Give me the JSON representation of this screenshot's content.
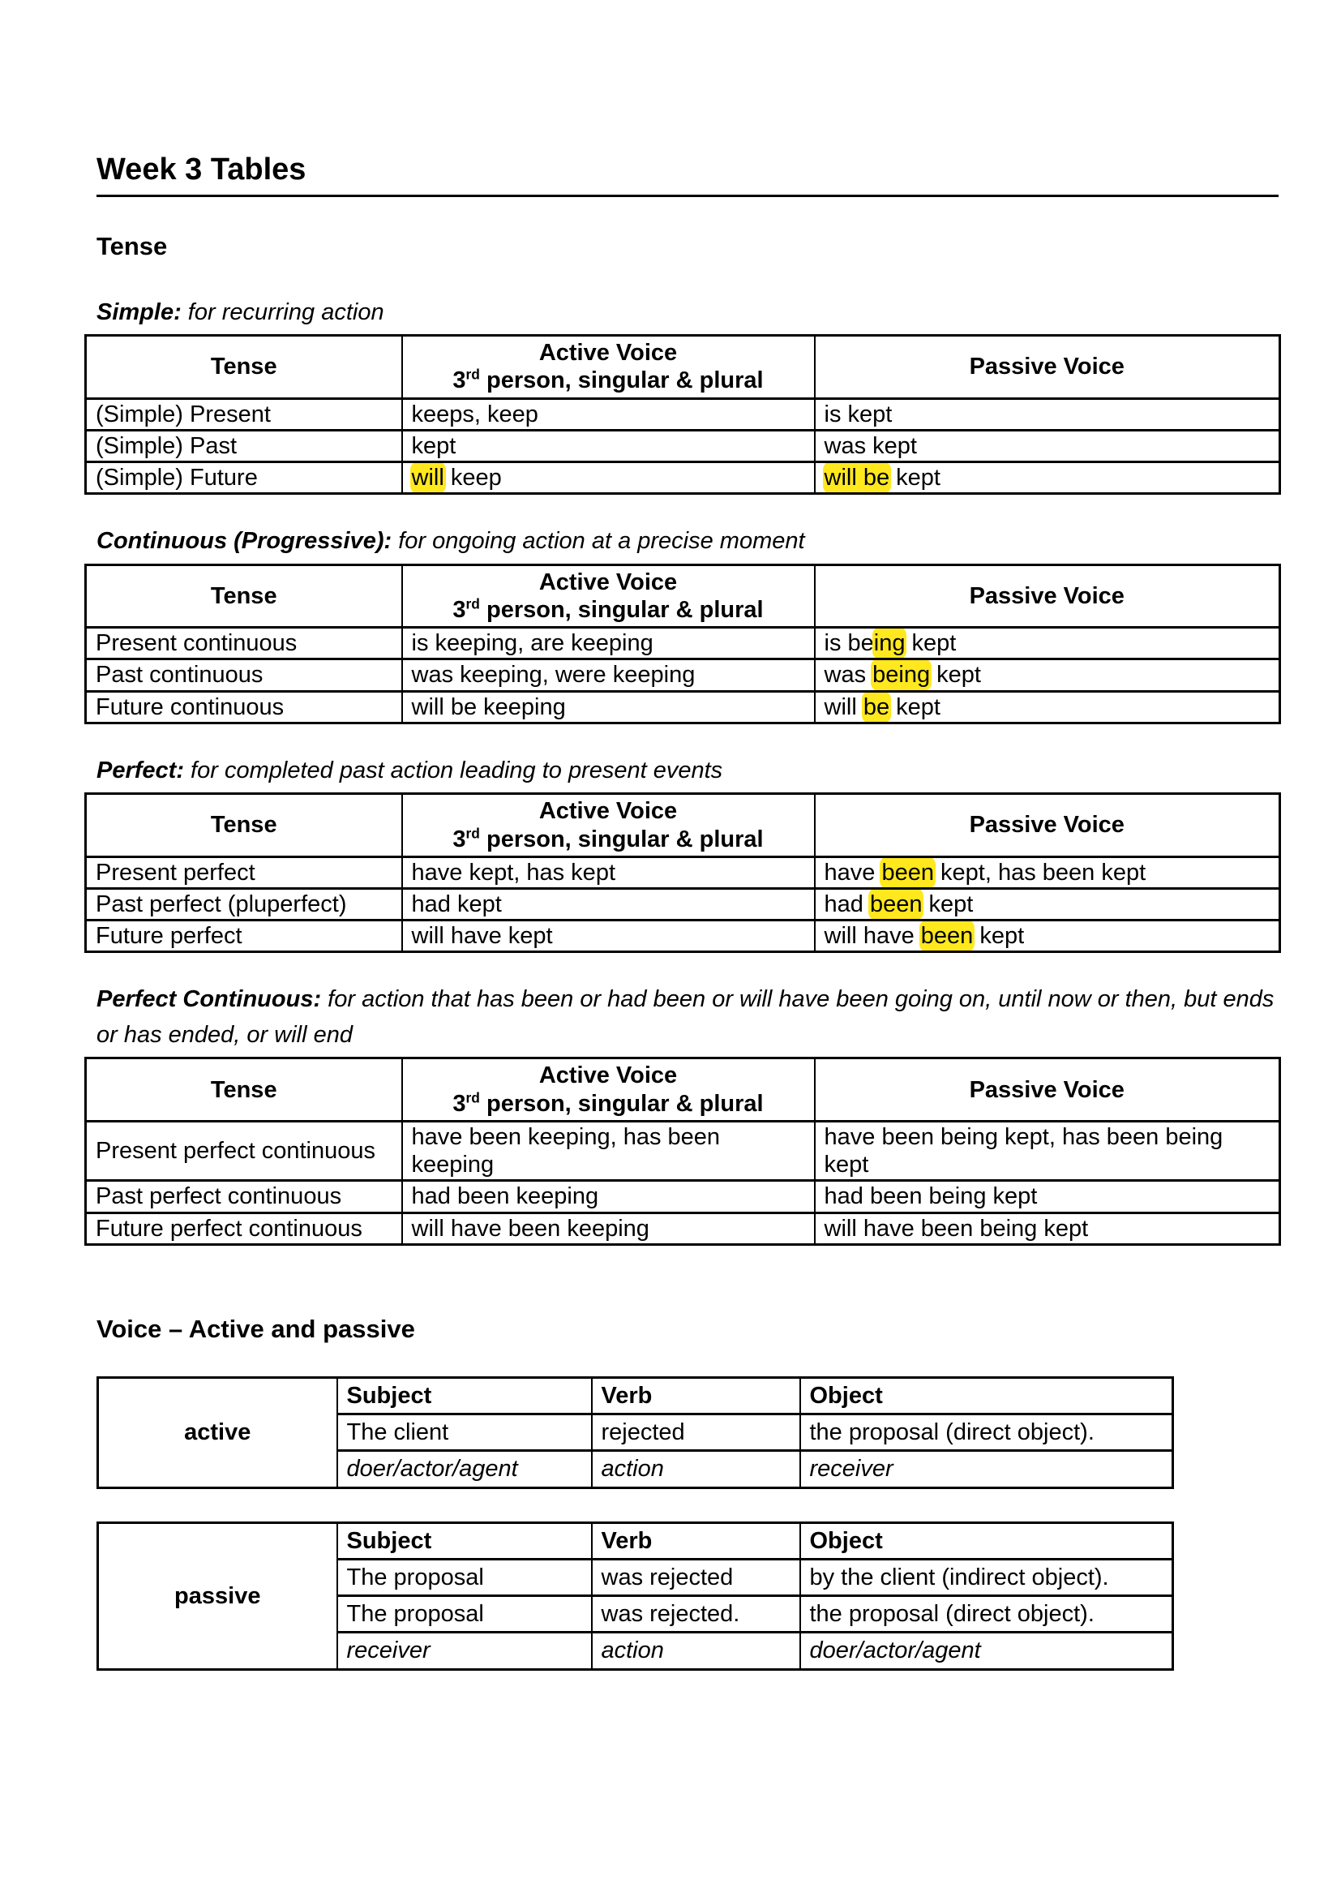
{
  "document": {
    "title": "Week 3 Tables",
    "tense_section_heading": "Tense",
    "voice_section_heading": "Voice – Active and passive"
  },
  "theme": {
    "highlight_color": "#ffe81e",
    "text_color": "#000000",
    "page_background": "#ffffff"
  },
  "tense_header": {
    "tense": "Tense",
    "active_line1": "Active Voice",
    "active_base": "3",
    "active_sup": "rd",
    "active_line2_rest": " person, singular & plural",
    "passive": "Passive Voice"
  },
  "tense_tables": [
    {
      "label": "Simple:",
      "description": " for recurring action",
      "rows": [
        {
          "tense": "(Simple) Present",
          "active": [
            {
              "t": "keeps, keep"
            }
          ],
          "passive": [
            {
              "t": "is kept"
            }
          ]
        },
        {
          "tense": "(Simple) Past",
          "active": [
            {
              "t": "kept"
            }
          ],
          "passive": [
            {
              "t": "was kept"
            }
          ]
        },
        {
          "tense": "(Simple) Future",
          "active": [
            {
              "t": "will",
              "h": true
            },
            {
              "t": " keep"
            }
          ],
          "passive": [
            {
              "t": "will be",
              "h": true
            },
            {
              "t": " kept"
            }
          ]
        }
      ]
    },
    {
      "label": "Continuous (Progressive):",
      "description": " for ongoing action at a precise moment",
      "rows": [
        {
          "tense": "Present continuous",
          "active": [
            {
              "t": "is keeping, are keeping"
            }
          ],
          "passive": [
            {
              "t": "is be"
            },
            {
              "t": "ing",
              "h": true
            },
            {
              "t": " kept"
            }
          ]
        },
        {
          "tense": "Past continuous",
          "active": [
            {
              "t": "was keeping, were keeping"
            }
          ],
          "passive": [
            {
              "t": "was "
            },
            {
              "t": "being",
              "h": true
            },
            {
              "t": " kept"
            }
          ]
        },
        {
          "tense": "Future continuous",
          "active": [
            {
              "t": "will be keeping"
            }
          ],
          "passive": [
            {
              "t": "will "
            },
            {
              "t": "be",
              "h": true
            },
            {
              "t": " kept"
            }
          ]
        }
      ]
    },
    {
      "label": "Perfect:",
      "description": " for completed past action leading to present events",
      "rows": [
        {
          "tense": "Present perfect",
          "active": [
            {
              "t": "have kept, has kept"
            }
          ],
          "passive": [
            {
              "t": "have "
            },
            {
              "t": "been",
              "h": true
            },
            {
              "t": " kept, has been kept"
            }
          ]
        },
        {
          "tense": "Past perfect (pluperfect)",
          "active": [
            {
              "t": "had kept"
            }
          ],
          "passive": [
            {
              "t": "had "
            },
            {
              "t": "been",
              "h": true
            },
            {
              "t": " kept"
            }
          ]
        },
        {
          "tense": "Future perfect",
          "active": [
            {
              "t": "will have kept"
            }
          ],
          "passive": [
            {
              "t": "will have "
            },
            {
              "t": "been",
              "h": true
            },
            {
              "t": " kept"
            }
          ]
        }
      ]
    },
    {
      "label": "Perfect Continuous:",
      "description": " for action that has been or had been or will have been going on, until now or then, but ends or has ended, or will end",
      "rows": [
        {
          "tense": "Present perfect continuous",
          "active": [
            {
              "t": "have been keeping, has been keeping"
            }
          ],
          "passive": [
            {
              "t": "have been being kept, has been being kept"
            }
          ]
        },
        {
          "tense": "Past perfect continuous",
          "active": [
            {
              "t": "had been keeping"
            }
          ],
          "passive": [
            {
              "t": "had been being kept"
            }
          ]
        },
        {
          "tense": "Future perfect continuous",
          "active": [
            {
              "t": "will have been keeping"
            }
          ],
          "passive": [
            {
              "t": "will have been being kept"
            }
          ]
        }
      ]
    }
  ],
  "voice_tables": [
    {
      "label": "active",
      "headers": {
        "subject": "Subject",
        "verb": "Verb",
        "object": "Object"
      },
      "rows": [
        {
          "subject": "The client",
          "verb": "rejected",
          "object": "the proposal (direct object)."
        }
      ],
      "roles": {
        "subject": "doer/actor/agent",
        "verb": "action",
        "object": "receiver"
      }
    },
    {
      "label": "passive",
      "headers": {
        "subject": "Subject",
        "verb": "Verb",
        "object": "Object"
      },
      "rows": [
        {
          "subject": "The proposal",
          "verb": "was rejected",
          "object": "by the client (indirect object)."
        },
        {
          "subject": "The proposal",
          "verb": "was rejected.",
          "object": "the proposal (direct object)."
        }
      ],
      "roles": {
        "subject": "receiver",
        "verb": "action",
        "object": "doer/actor/agent"
      }
    }
  ]
}
